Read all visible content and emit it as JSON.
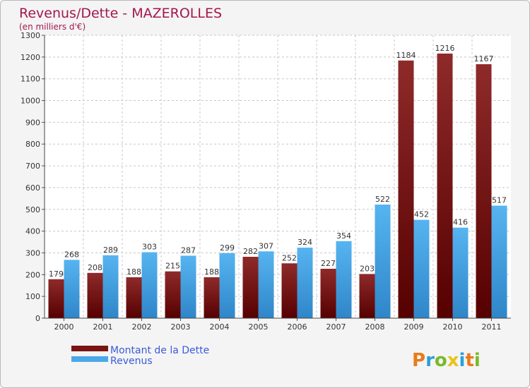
{
  "chart_data": {
    "type": "bar",
    "title": "Revenus/Dette - MAZEROLLES",
    "subtitle": "(en milliers d'€)",
    "categories": [
      "2000",
      "2001",
      "2002",
      "2003",
      "2004",
      "2005",
      "2006",
      "2007",
      "2008",
      "2009",
      "2010",
      "2011"
    ],
    "series": [
      {
        "name": "Montant de la Dette",
        "color": "#7a1414",
        "values": [
          179,
          208,
          188,
          215,
          188,
          282,
          252,
          227,
          203,
          1184,
          1216,
          1167
        ]
      },
      {
        "name": "Revenus",
        "color": "#4aa8e8",
        "values": [
          268,
          289,
          303,
          287,
          299,
          307,
          324,
          354,
          522,
          452,
          416,
          517
        ]
      }
    ],
    "ylim": [
      0,
      1300
    ],
    "yticks": [
      0,
      100,
      200,
      300,
      400,
      500,
      600,
      700,
      800,
      900,
      1000,
      1100,
      1200,
      1300
    ],
    "grid": true,
    "legend_position": "bottom-left"
  },
  "brand": {
    "logo_text": "Proxiti"
  }
}
